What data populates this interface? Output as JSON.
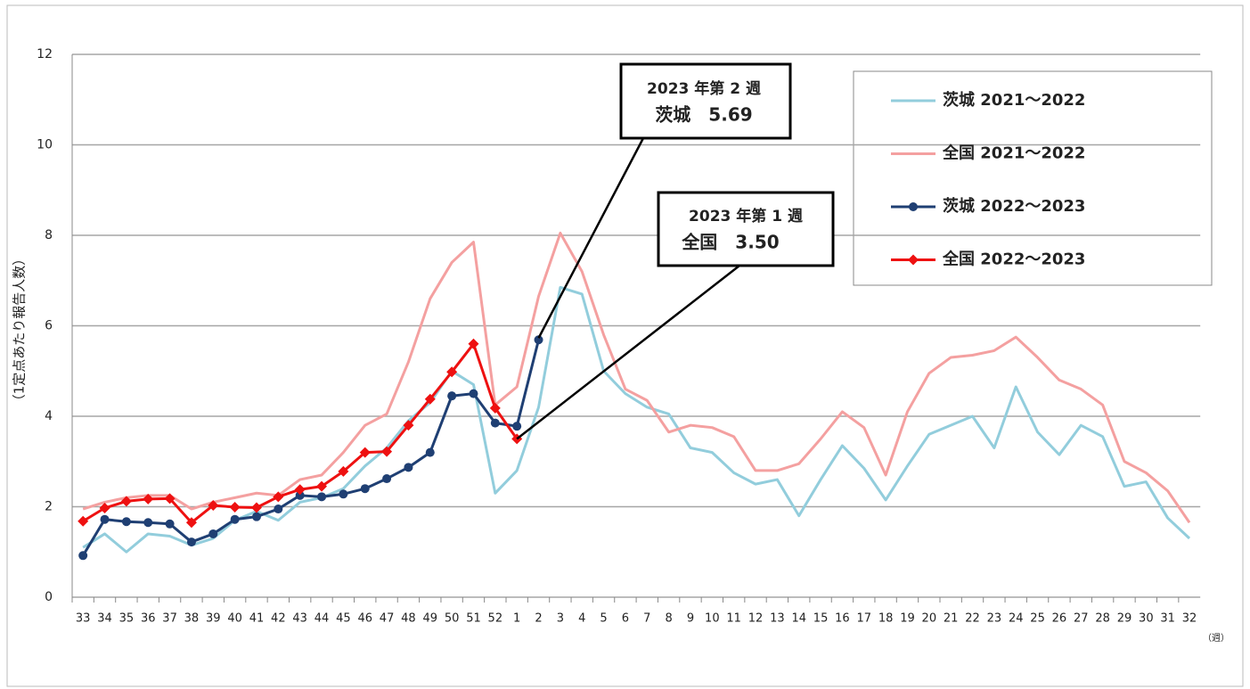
{
  "chart_data": {
    "type": "line",
    "y_label": "（1定点あたり報告人数）",
    "x_unit": "（週）",
    "categories": [
      "33",
      "34",
      "35",
      "36",
      "37",
      "38",
      "39",
      "40",
      "41",
      "42",
      "43",
      "44",
      "45",
      "46",
      "47",
      "48",
      "49",
      "50",
      "51",
      "52",
      "1",
      "2",
      "3",
      "4",
      "5",
      "6",
      "7",
      "8",
      "9",
      "10",
      "11",
      "12",
      "13",
      "14",
      "15",
      "16",
      "17",
      "18",
      "19",
      "20",
      "21",
      "22",
      "23",
      "24",
      "25",
      "26",
      "27",
      "28",
      "29",
      "30",
      "31",
      "32"
    ],
    "ylim": [
      0,
      12
    ],
    "yticks": [
      0,
      2,
      4,
      6,
      8,
      10,
      12
    ],
    "grid": true,
    "legend": "top-right",
    "series": [
      {
        "name": "茨城 2021～2022",
        "color": "#92cddc",
        "marker": "none",
        "values": [
          1.1,
          1.4,
          1.0,
          1.4,
          1.35,
          1.15,
          1.3,
          1.7,
          1.9,
          1.7,
          2.1,
          2.2,
          2.4,
          2.9,
          3.3,
          3.9,
          4.3,
          5.0,
          4.7,
          2.3,
          2.8,
          4.2,
          6.85,
          6.7,
          5.0,
          4.5,
          4.2,
          4.05,
          3.3,
          3.2,
          2.75,
          2.5,
          2.6,
          1.8,
          2.6,
          3.35,
          2.85,
          2.15,
          2.9,
          3.6,
          3.8,
          4.0,
          3.3,
          4.65,
          3.65,
          3.15,
          3.8,
          3.55,
          2.45,
          2.55,
          1.75,
          1.3
        ]
      },
      {
        "name": "全国 2021～2022",
        "color": "#f4a0a0",
        "marker": "none",
        "values": [
          1.95,
          2.1,
          2.2,
          2.25,
          2.25,
          1.95,
          2.1,
          2.2,
          2.3,
          2.25,
          2.6,
          2.7,
          3.2,
          3.8,
          4.05,
          5.2,
          6.6,
          7.4,
          7.85,
          4.25,
          4.65,
          6.65,
          8.05,
          7.2,
          5.8,
          4.6,
          4.35,
          3.65,
          3.8,
          3.75,
          3.55,
          2.8,
          2.8,
          2.95,
          3.5,
          4.1,
          3.75,
          2.7,
          4.1,
          4.95,
          5.3,
          5.35,
          5.45,
          5.75,
          5.3,
          4.8,
          4.6,
          4.25,
          3.0,
          2.75,
          2.35,
          1.65
        ]
      },
      {
        "name": "茨城 2022～2023",
        "color": "#1f3f73",
        "marker": "circle",
        "values": [
          0.92,
          1.72,
          1.67,
          1.65,
          1.62,
          1.22,
          1.4,
          1.72,
          1.78,
          1.95,
          2.25,
          2.22,
          2.28,
          2.4,
          2.62,
          2.87,
          3.2,
          4.45,
          4.5,
          3.85,
          3.78,
          5.69,
          null,
          null,
          null,
          null,
          null,
          null,
          null,
          null,
          null,
          null,
          null,
          null,
          null,
          null,
          null,
          null,
          null,
          null,
          null,
          null,
          null,
          null,
          null,
          null,
          null,
          null,
          null,
          null,
          null,
          null
        ]
      },
      {
        "name": "全国 2022～2023",
        "color": "#ee1111",
        "marker": "diamond",
        "values": [
          1.68,
          1.97,
          2.12,
          2.17,
          2.18,
          1.65,
          2.03,
          1.99,
          1.98,
          2.22,
          2.38,
          2.45,
          2.78,
          3.2,
          3.22,
          3.8,
          4.38,
          4.98,
          5.6,
          4.18,
          3.5,
          null,
          null,
          null,
          null,
          null,
          null,
          null,
          null,
          null,
          null,
          null,
          null,
          null,
          null,
          null,
          null,
          null,
          null,
          null,
          null,
          null,
          null,
          null,
          null,
          null,
          null,
          null,
          null,
          null,
          null,
          null
        ]
      }
    ],
    "annotations": [
      {
        "title": "2023 年第 2 週",
        "label": "茨城　5.69",
        "color": "#1a6fb4"
      },
      {
        "title": "2023 年第 1 週",
        "label": "全国　3.50",
        "color": "#ee1111"
      }
    ]
  }
}
